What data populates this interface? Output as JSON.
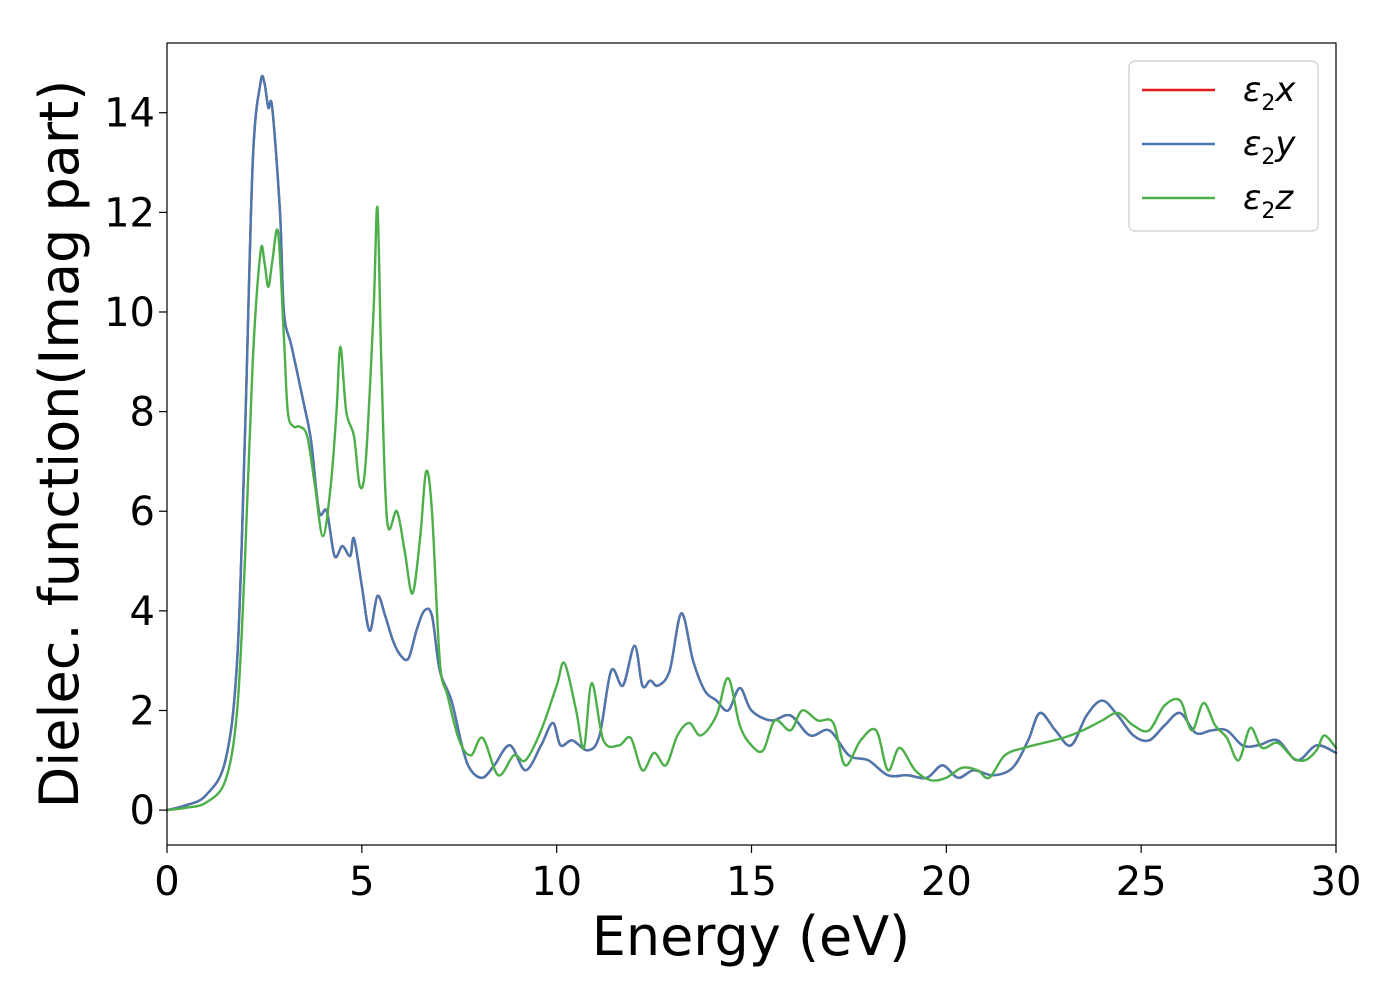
{
  "chart_data": {
    "type": "line",
    "title": "",
    "xlabel": "Energy (eV)",
    "ylabel": "Dielec. function(Imag part)",
    "xlim": [
      0,
      30
    ],
    "ylim": [
      -0.7,
      15.4
    ],
    "xticks": [
      0,
      5,
      10,
      15,
      20,
      25,
      30
    ],
    "yticks": [
      0,
      2,
      4,
      6,
      8,
      10,
      12,
      14
    ],
    "grid": false,
    "legend_position": "top-right",
    "series": [
      {
        "name": "ε2x",
        "legend_base": "ε",
        "legend_sub": "2",
        "legend_tail": "x",
        "color": "#e41a1c",
        "points": [
          [
            0,
            0
          ],
          [
            0.5,
            0.1
          ],
          [
            1,
            0.3
          ],
          [
            1.5,
            1.0
          ],
          [
            1.8,
            3.0
          ],
          [
            2.0,
            7.5
          ],
          [
            2.2,
            13.0
          ],
          [
            2.4,
            14.6
          ],
          [
            2.5,
            14.6
          ],
          [
            2.6,
            14.1
          ],
          [
            2.7,
            14.1
          ],
          [
            2.9,
            12.0
          ],
          [
            3.0,
            10.0
          ],
          [
            3.2,
            9.3
          ],
          [
            3.5,
            8.2
          ],
          [
            3.7,
            7.4
          ],
          [
            3.9,
            6.0
          ],
          [
            4.1,
            6.0
          ],
          [
            4.3,
            5.1
          ],
          [
            4.5,
            5.3
          ],
          [
            4.7,
            5.1
          ],
          [
            4.8,
            5.45
          ],
          [
            5.0,
            4.5
          ],
          [
            5.2,
            3.6
          ],
          [
            5.4,
            4.3
          ],
          [
            5.6,
            3.9
          ],
          [
            5.8,
            3.4
          ],
          [
            6.0,
            3.1
          ],
          [
            6.2,
            3.05
          ],
          [
            6.4,
            3.6
          ],
          [
            6.6,
            4.0
          ],
          [
            6.8,
            3.9
          ],
          [
            7.0,
            2.8
          ],
          [
            7.3,
            2.2
          ],
          [
            7.6,
            1.2
          ],
          [
            7.8,
            0.8
          ],
          [
            8.1,
            0.65
          ],
          [
            8.4,
            0.9
          ],
          [
            8.8,
            1.3
          ],
          [
            9.2,
            0.8
          ],
          [
            9.6,
            1.3
          ],
          [
            9.9,
            1.75
          ],
          [
            10.1,
            1.3
          ],
          [
            10.4,
            1.4
          ],
          [
            10.8,
            1.2
          ],
          [
            11.1,
            1.5
          ],
          [
            11.4,
            2.8
          ],
          [
            11.7,
            2.5
          ],
          [
            12.0,
            3.3
          ],
          [
            12.2,
            2.5
          ],
          [
            12.4,
            2.6
          ],
          [
            12.6,
            2.5
          ],
          [
            12.9,
            2.8
          ],
          [
            13.2,
            3.95
          ],
          [
            13.5,
            3.0
          ],
          [
            13.8,
            2.4
          ],
          [
            14.1,
            2.2
          ],
          [
            14.4,
            2.0
          ],
          [
            14.7,
            2.45
          ],
          [
            15.0,
            2.0
          ],
          [
            15.5,
            1.8
          ],
          [
            16.0,
            1.9
          ],
          [
            16.5,
            1.5
          ],
          [
            17.0,
            1.6
          ],
          [
            17.5,
            1.1
          ],
          [
            18.0,
            1.0
          ],
          [
            18.5,
            0.7
          ],
          [
            19.0,
            0.7
          ],
          [
            19.5,
            0.65
          ],
          [
            19.9,
            0.9
          ],
          [
            20.3,
            0.65
          ],
          [
            20.7,
            0.8
          ],
          [
            21.2,
            0.7
          ],
          [
            21.7,
            0.85
          ],
          [
            22.1,
            1.4
          ],
          [
            22.4,
            1.95
          ],
          [
            22.8,
            1.6
          ],
          [
            23.2,
            1.3
          ],
          [
            23.6,
            1.9
          ],
          [
            24.0,
            2.2
          ],
          [
            24.4,
            1.9
          ],
          [
            24.8,
            1.5
          ],
          [
            25.2,
            1.4
          ],
          [
            25.6,
            1.7
          ],
          [
            26.0,
            1.95
          ],
          [
            26.4,
            1.55
          ],
          [
            26.8,
            1.6
          ],
          [
            27.2,
            1.6
          ],
          [
            27.6,
            1.3
          ],
          [
            28.0,
            1.3
          ],
          [
            28.5,
            1.4
          ],
          [
            29.0,
            1.0
          ],
          [
            29.5,
            1.3
          ],
          [
            30.0,
            1.15
          ]
        ]
      },
      {
        "name": "ε2y",
        "legend_base": "ε",
        "legend_sub": "2",
        "legend_tail": "y",
        "color": "#4a78b0",
        "points": [
          [
            0,
            0
          ],
          [
            0.5,
            0.1
          ],
          [
            1,
            0.3
          ],
          [
            1.5,
            1.0
          ],
          [
            1.8,
            3.0
          ],
          [
            2.0,
            7.5
          ],
          [
            2.2,
            13.0
          ],
          [
            2.4,
            14.6
          ],
          [
            2.5,
            14.6
          ],
          [
            2.6,
            14.1
          ],
          [
            2.7,
            14.1
          ],
          [
            2.9,
            12.0
          ],
          [
            3.0,
            10.0
          ],
          [
            3.2,
            9.3
          ],
          [
            3.5,
            8.2
          ],
          [
            3.7,
            7.4
          ],
          [
            3.9,
            6.0
          ],
          [
            4.1,
            6.0
          ],
          [
            4.3,
            5.1
          ],
          [
            4.5,
            5.3
          ],
          [
            4.7,
            5.1
          ],
          [
            4.8,
            5.45
          ],
          [
            5.0,
            4.5
          ],
          [
            5.2,
            3.6
          ],
          [
            5.4,
            4.3
          ],
          [
            5.6,
            3.9
          ],
          [
            5.8,
            3.4
          ],
          [
            6.0,
            3.1
          ],
          [
            6.2,
            3.05
          ],
          [
            6.4,
            3.6
          ],
          [
            6.6,
            4.0
          ],
          [
            6.8,
            3.9
          ],
          [
            7.0,
            2.8
          ],
          [
            7.3,
            2.2
          ],
          [
            7.6,
            1.2
          ],
          [
            7.8,
            0.8
          ],
          [
            8.1,
            0.65
          ],
          [
            8.4,
            0.9
          ],
          [
            8.8,
            1.3
          ],
          [
            9.2,
            0.8
          ],
          [
            9.6,
            1.3
          ],
          [
            9.9,
            1.75
          ],
          [
            10.1,
            1.3
          ],
          [
            10.4,
            1.4
          ],
          [
            10.8,
            1.2
          ],
          [
            11.1,
            1.5
          ],
          [
            11.4,
            2.8
          ],
          [
            11.7,
            2.5
          ],
          [
            12.0,
            3.3
          ],
          [
            12.2,
            2.5
          ],
          [
            12.4,
            2.6
          ],
          [
            12.6,
            2.5
          ],
          [
            12.9,
            2.8
          ],
          [
            13.2,
            3.95
          ],
          [
            13.5,
            3.0
          ],
          [
            13.8,
            2.4
          ],
          [
            14.1,
            2.2
          ],
          [
            14.4,
            2.0
          ],
          [
            14.7,
            2.45
          ],
          [
            15.0,
            2.0
          ],
          [
            15.5,
            1.8
          ],
          [
            16.0,
            1.9
          ],
          [
            16.5,
            1.5
          ],
          [
            17.0,
            1.6
          ],
          [
            17.5,
            1.1
          ],
          [
            18.0,
            1.0
          ],
          [
            18.5,
            0.7
          ],
          [
            19.0,
            0.7
          ],
          [
            19.5,
            0.65
          ],
          [
            19.9,
            0.9
          ],
          [
            20.3,
            0.65
          ],
          [
            20.7,
            0.8
          ],
          [
            21.2,
            0.7
          ],
          [
            21.7,
            0.85
          ],
          [
            22.1,
            1.4
          ],
          [
            22.4,
            1.95
          ],
          [
            22.8,
            1.6
          ],
          [
            23.2,
            1.3
          ],
          [
            23.6,
            1.9
          ],
          [
            24.0,
            2.2
          ],
          [
            24.4,
            1.9
          ],
          [
            24.8,
            1.5
          ],
          [
            25.2,
            1.4
          ],
          [
            25.6,
            1.7
          ],
          [
            26.0,
            1.95
          ],
          [
            26.4,
            1.55
          ],
          [
            26.8,
            1.6
          ],
          [
            27.2,
            1.6
          ],
          [
            27.6,
            1.3
          ],
          [
            28.0,
            1.3
          ],
          [
            28.5,
            1.4
          ],
          [
            29.0,
            1.0
          ],
          [
            29.5,
            1.3
          ],
          [
            30.0,
            1.15
          ]
        ]
      },
      {
        "name": "ε2z",
        "legend_base": "ε",
        "legend_sub": "2",
        "legend_tail": "z",
        "color": "#4daf4a",
        "points": [
          [
            0,
            0
          ],
          [
            0.5,
            0.05
          ],
          [
            1,
            0.15
          ],
          [
            1.5,
            0.6
          ],
          [
            1.8,
            2.0
          ],
          [
            2.0,
            5.0
          ],
          [
            2.2,
            9.0
          ],
          [
            2.4,
            11.2
          ],
          [
            2.5,
            11.0
          ],
          [
            2.6,
            10.5
          ],
          [
            2.7,
            11.0
          ],
          [
            2.85,
            11.6
          ],
          [
            3.0,
            9.5
          ],
          [
            3.1,
            8.0
          ],
          [
            3.25,
            7.7
          ],
          [
            3.4,
            7.7
          ],
          [
            3.6,
            7.5
          ],
          [
            3.8,
            6.5
          ],
          [
            4.0,
            5.5
          ],
          [
            4.2,
            6.5
          ],
          [
            4.35,
            8.0
          ],
          [
            4.45,
            9.3
          ],
          [
            4.6,
            8.0
          ],
          [
            4.8,
            7.5
          ],
          [
            4.95,
            6.5
          ],
          [
            5.1,
            7.0
          ],
          [
            5.3,
            10.0
          ],
          [
            5.4,
            12.1
          ],
          [
            5.5,
            9.0
          ],
          [
            5.65,
            5.8
          ],
          [
            5.9,
            6.0
          ],
          [
            6.1,
            5.2
          ],
          [
            6.3,
            4.35
          ],
          [
            6.5,
            5.5
          ],
          [
            6.65,
            6.8
          ],
          [
            6.8,
            6.0
          ],
          [
            7.0,
            3.0
          ],
          [
            7.2,
            2.3
          ],
          [
            7.5,
            1.4
          ],
          [
            7.8,
            1.1
          ],
          [
            8.1,
            1.45
          ],
          [
            8.5,
            0.7
          ],
          [
            8.9,
            1.1
          ],
          [
            9.2,
            1.0
          ],
          [
            9.6,
            1.6
          ],
          [
            10.0,
            2.5
          ],
          [
            10.2,
            2.95
          ],
          [
            10.5,
            2.0
          ],
          [
            10.7,
            1.25
          ],
          [
            10.9,
            2.55
          ],
          [
            11.2,
            1.4
          ],
          [
            11.6,
            1.3
          ],
          [
            11.9,
            1.45
          ],
          [
            12.2,
            0.8
          ],
          [
            12.5,
            1.15
          ],
          [
            12.8,
            0.9
          ],
          [
            13.1,
            1.5
          ],
          [
            13.4,
            1.75
          ],
          [
            13.7,
            1.5
          ],
          [
            14.1,
            1.9
          ],
          [
            14.4,
            2.65
          ],
          [
            14.7,
            1.7
          ],
          [
            15.0,
            1.3
          ],
          [
            15.3,
            1.2
          ],
          [
            15.6,
            1.8
          ],
          [
            16.0,
            1.6
          ],
          [
            16.3,
            2.0
          ],
          [
            16.7,
            1.8
          ],
          [
            17.1,
            1.75
          ],
          [
            17.4,
            0.9
          ],
          [
            17.8,
            1.4
          ],
          [
            18.2,
            1.6
          ],
          [
            18.5,
            0.8
          ],
          [
            18.8,
            1.25
          ],
          [
            19.2,
            0.8
          ],
          [
            19.6,
            0.6
          ],
          [
            20.0,
            0.65
          ],
          [
            20.4,
            0.85
          ],
          [
            20.8,
            0.8
          ],
          [
            21.1,
            0.65
          ],
          [
            21.5,
            1.1
          ],
          [
            22.0,
            1.25
          ],
          [
            22.5,
            1.35
          ],
          [
            23.0,
            1.45
          ],
          [
            23.5,
            1.6
          ],
          [
            24.0,
            1.8
          ],
          [
            24.4,
            1.95
          ],
          [
            24.8,
            1.7
          ],
          [
            25.2,
            1.6
          ],
          [
            25.6,
            2.1
          ],
          [
            26.0,
            2.2
          ],
          [
            26.3,
            1.6
          ],
          [
            26.6,
            2.15
          ],
          [
            26.9,
            1.7
          ],
          [
            27.2,
            1.45
          ],
          [
            27.5,
            1.0
          ],
          [
            27.8,
            1.65
          ],
          [
            28.1,
            1.25
          ],
          [
            28.5,
            1.35
          ],
          [
            28.9,
            1.05
          ],
          [
            29.2,
            1.0
          ],
          [
            29.5,
            1.2
          ],
          [
            29.7,
            1.5
          ],
          [
            30.0,
            1.25
          ]
        ]
      }
    ]
  }
}
